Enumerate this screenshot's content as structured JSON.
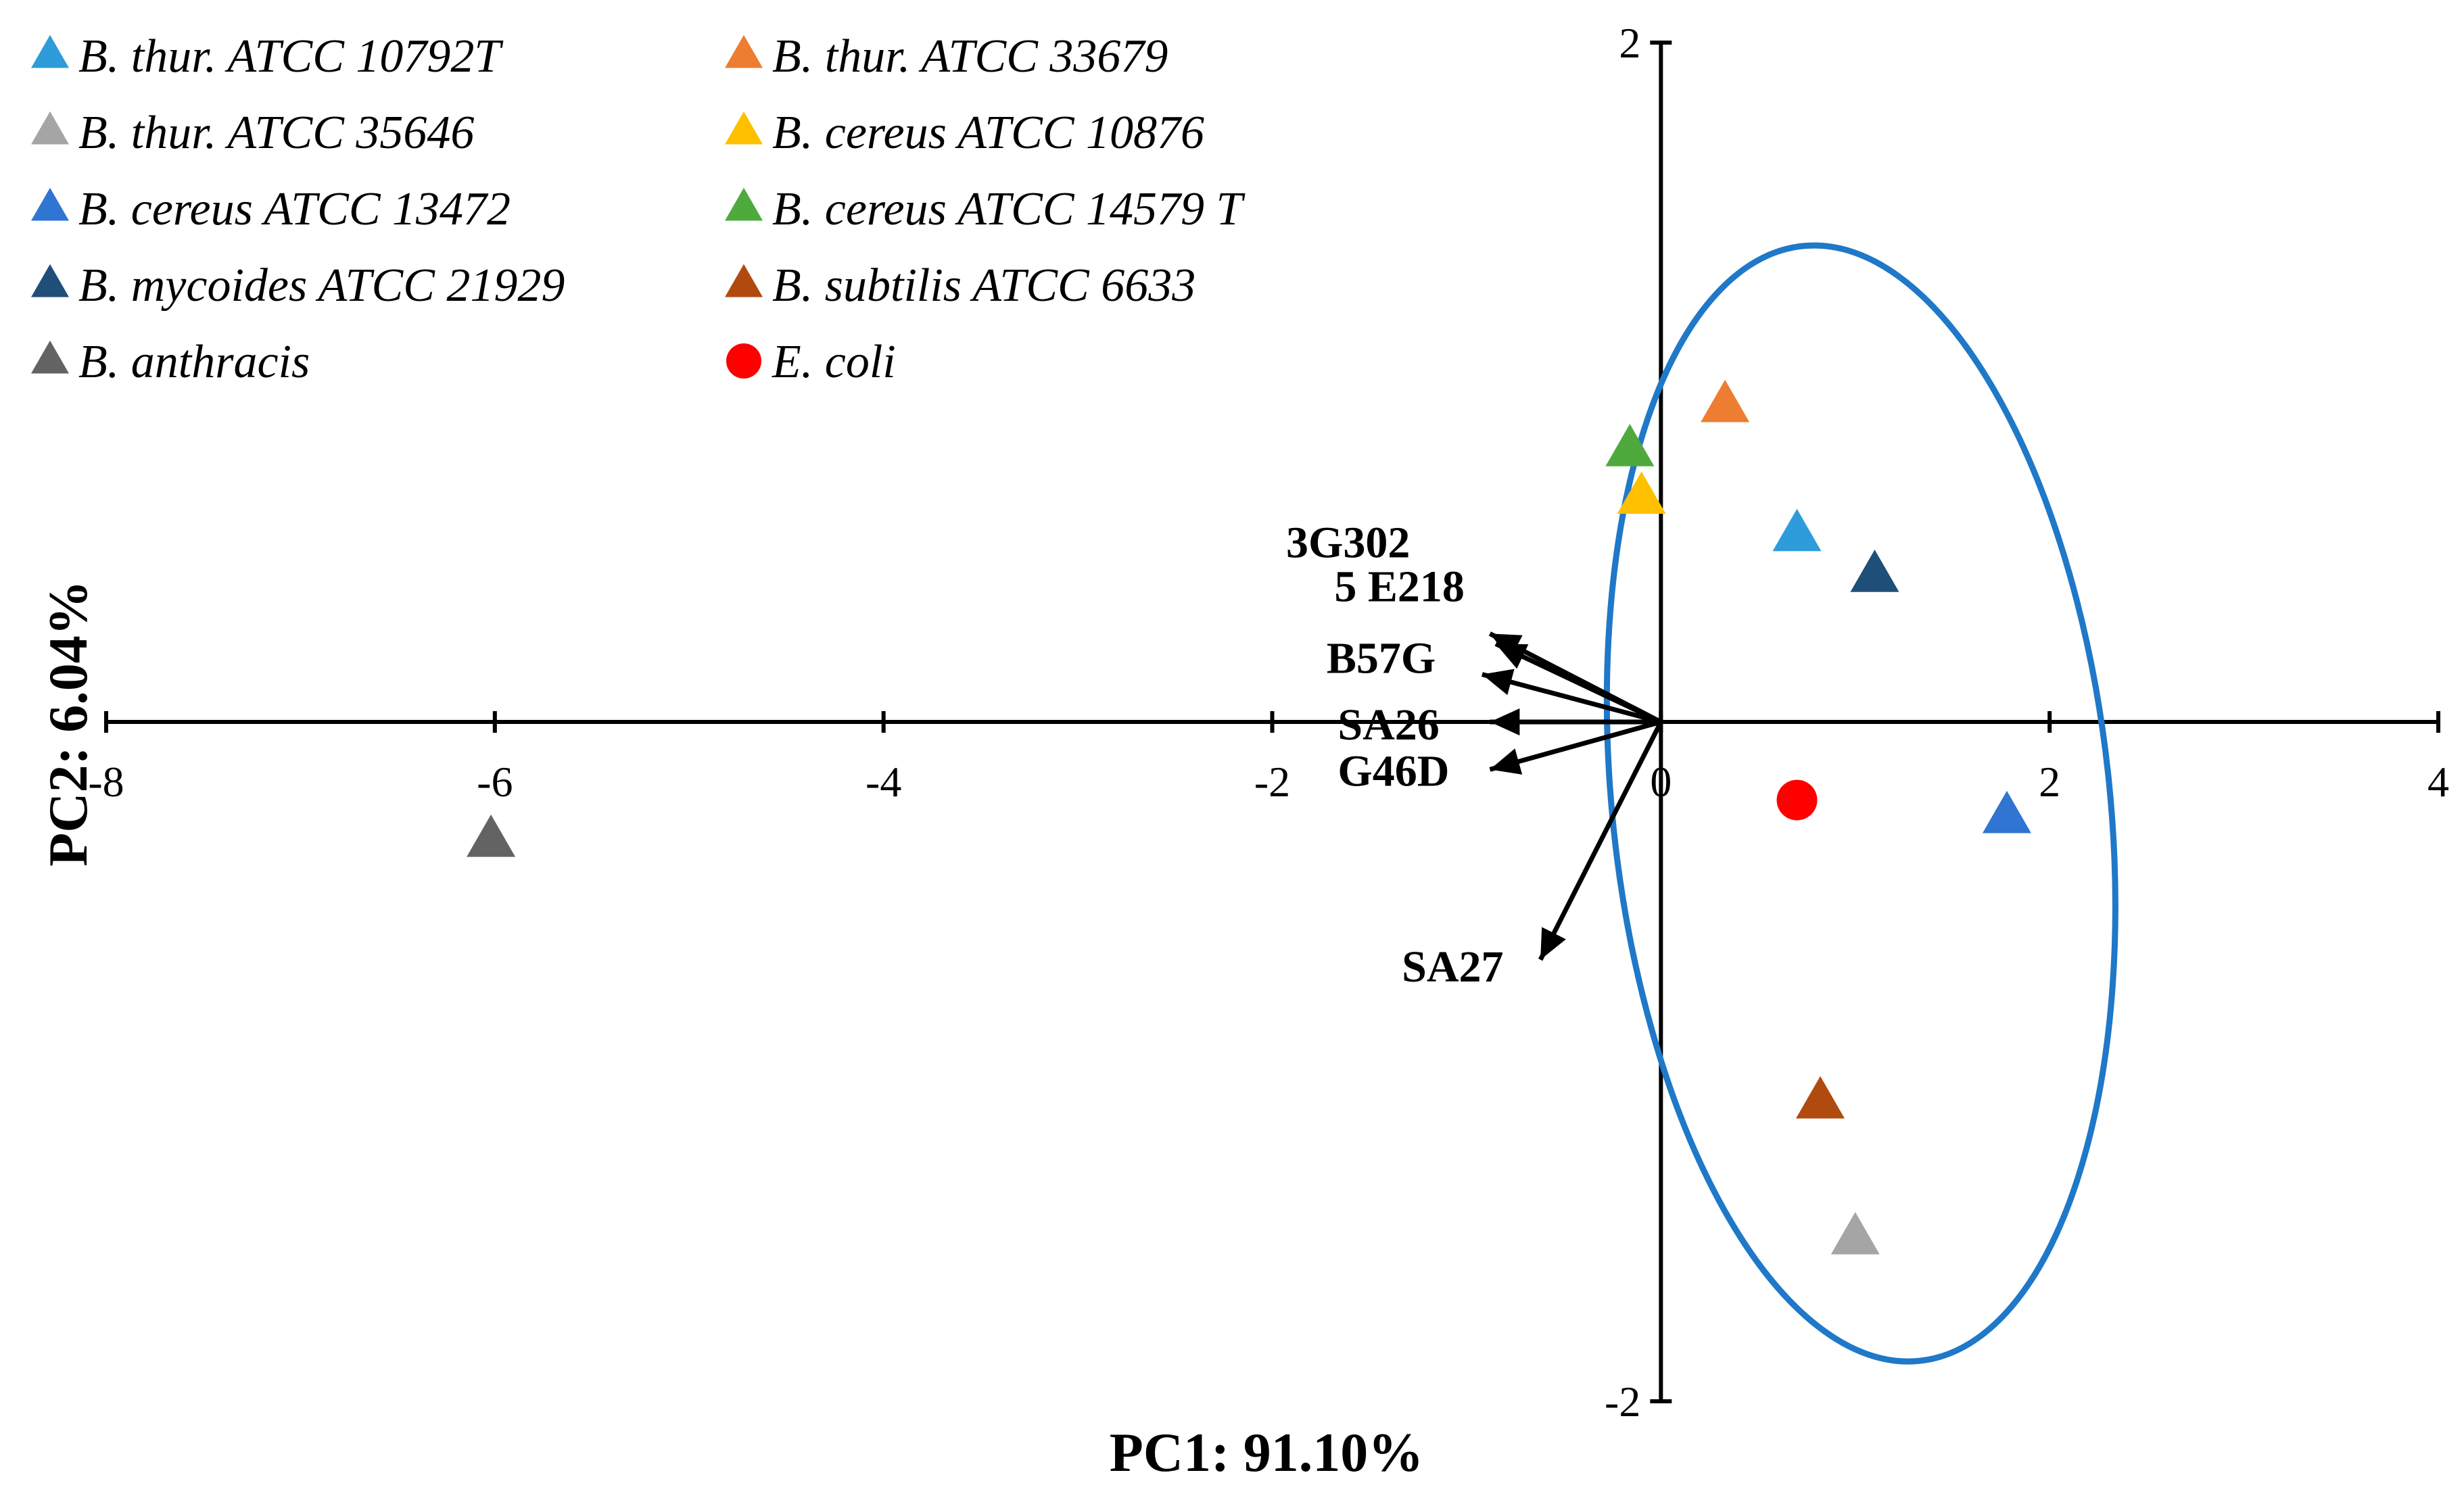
{
  "chart_data": {
    "type": "scatter",
    "subtype": "pca-biplot",
    "xlabel": "PC1: 91.10%",
    "ylabel": "PC2: 6.04%",
    "xlim": [
      -8,
      4
    ],
    "ylim": [
      -2,
      2
    ],
    "x_ticks": [
      "-8",
      "-6",
      "-4",
      "-2",
      "0",
      "2",
      "4"
    ],
    "y_ticks": [
      "2",
      "-2"
    ],
    "legend_position": "top-left",
    "series": [
      {
        "name": "B. thur. ATCC 10792T",
        "marker": "triangle",
        "color": "#2E9BDA",
        "x": 0.7,
        "y": 0.55
      },
      {
        "name": "B. thur. ATCC 33679",
        "marker": "triangle",
        "color": "#ED7D31",
        "x": 0.33,
        "y": 0.93
      },
      {
        "name": "B. thur. ATCC 35646",
        "marker": "triangle",
        "color": "#A5A5A5",
        "x": 1.0,
        "y": -1.52
      },
      {
        "name": "B. cereus ATCC 10876",
        "marker": "triangle",
        "color": "#FFC000",
        "x": -0.1,
        "y": 0.66
      },
      {
        "name": "B. cereus ATCC 13472",
        "marker": "triangle",
        "color": "#2F75D1",
        "x": 1.78,
        "y": -0.28
      },
      {
        "name": "B. cereus ATCC 14579 T",
        "marker": "triangle",
        "color": "#4EAA3C",
        "x": -0.16,
        "y": 0.8
      },
      {
        "name": "B. mycoides ATCC 21929",
        "marker": "triangle",
        "color": "#1F4E79",
        "x": 1.1,
        "y": 0.43
      },
      {
        "name": "B. subtilis ATCC 6633",
        "marker": "triangle",
        "color": "#B14A0F",
        "x": 0.82,
        "y": -1.12
      },
      {
        "name": "B. anthracis",
        "marker": "triangle",
        "color": "#636363",
        "x": -6.02,
        "y": -0.35
      },
      {
        "name": "E. coli",
        "marker": "circle",
        "color": "#FF0000",
        "x": 0.7,
        "y": -0.23
      }
    ],
    "loadings": [
      {
        "label": "3G302",
        "x": -0.85,
        "y": 0.23
      },
      {
        "label": "5 E218",
        "x": -0.88,
        "y": 0.26
      },
      {
        "label": "B57G",
        "x": -0.92,
        "y": 0.14
      },
      {
        "label": "SA26",
        "x": -0.88,
        "y": 0.0
      },
      {
        "label": "G46D",
        "x": -0.88,
        "y": -0.14
      },
      {
        "label": "SA27",
        "x": -0.62,
        "y": -0.7
      }
    ],
    "annotations": [
      {
        "type": "ellipse",
        "color": "#1F78C8",
        "center_x": 1.03,
        "center_y": -0.24,
        "radius_x": 1.28,
        "radius_y": 1.65,
        "rotation_deg": -6
      }
    ]
  }
}
